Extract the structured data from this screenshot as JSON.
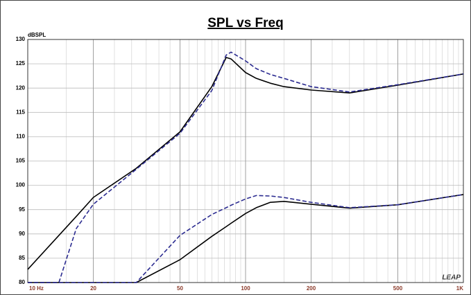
{
  "chart_data": {
    "type": "line",
    "title": "SPL vs Freq",
    "y_label": "dBSPL",
    "annotation": "LEAP",
    "x": [
      10,
      13.9,
      16.7,
      20,
      31.5,
      50,
      70,
      81.5,
      85.8,
      100,
      112,
      130,
      150,
      200,
      300,
      500,
      1000
    ],
    "series": [
      {
        "color": "#000000",
        "dashed": false,
        "values": [
          82.7,
          89.7,
          93.6,
          97.5,
          103.5,
          111,
          120.3,
          126.3,
          126.0,
          123.2,
          122,
          121,
          120.3,
          119.6,
          119.0,
          120.6,
          122.9
        ]
      },
      {
        "color": "#2b2b90",
        "dashed": true,
        "values": [
          80,
          80,
          91.1,
          96.1,
          103.3,
          110.7,
          119.5,
          126.8,
          127.4,
          125.6,
          124,
          122.8,
          122,
          120.3,
          119.2,
          120.7,
          122.9
        ]
      },
      {
        "color": "#000000",
        "dashed": false,
        "values": [
          80,
          80,
          80,
          80,
          80,
          84.7,
          89.5,
          91.5,
          92.2,
          94.2,
          95.4,
          96.5,
          96.7,
          96.1,
          95.3,
          96,
          98.1
        ]
      },
      {
        "color": "#2b2b90",
        "dashed": true,
        "values": [
          80,
          80,
          80,
          80,
          80,
          89.7,
          94,
          95.4,
          95.9,
          97.2,
          97.9,
          97.8,
          97.5,
          96.5,
          95.4,
          96,
          98.1
        ]
      }
    ],
    "xlim": [
      10,
      1000
    ],
    "xlog": true,
    "xticks": [
      {
        "value": 10,
        "label": "10 Hz"
      },
      20,
      50,
      100,
      200,
      500,
      {
        "value": 1000,
        "label": "1K"
      }
    ],
    "ylim": [
      80,
      130
    ],
    "yticks": [
      80,
      85,
      90,
      95,
      100,
      105,
      110,
      115,
      120,
      125,
      130
    ],
    "grid": true
  }
}
